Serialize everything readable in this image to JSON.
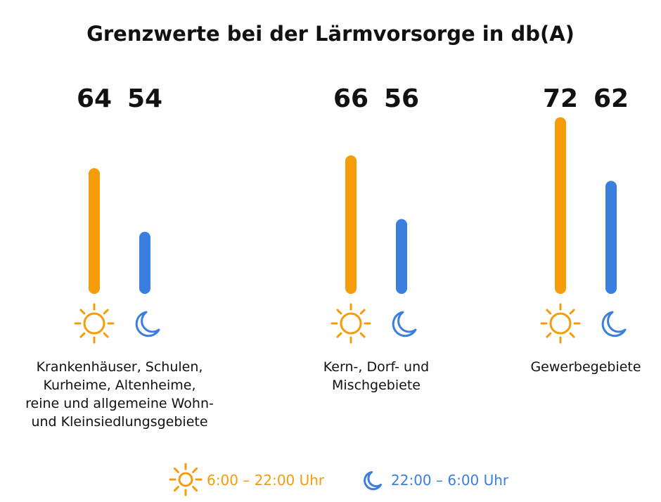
{
  "chart_data": {
    "type": "bar",
    "title": "Grenzwerte bei der Lärmvorsorge in db(A)",
    "categories": [
      [
        "Krankenhäuser, Schulen,",
        "Kurheime, Altenheime,",
        "reine und allgemeine Wohn-",
        "und Kleinsiedlungsgebiete"
      ],
      [
        "Kern-, Dorf- und",
        "Mischgebiete"
      ],
      [
        "Gewerbegebiete"
      ]
    ],
    "series": [
      {
        "name": "6:00 – 22:00 Uhr",
        "icon": "sun-icon",
        "color": "#f59c0b",
        "values": [
          64,
          66,
          72
        ]
      },
      {
        "name": "22:00 – 6:00 Uhr",
        "icon": "moon-icon",
        "color": "#3a7fe0",
        "values": [
          54,
          56,
          62
        ]
      }
    ],
    "legend_position": "bottom-center",
    "grid": false
  }
}
